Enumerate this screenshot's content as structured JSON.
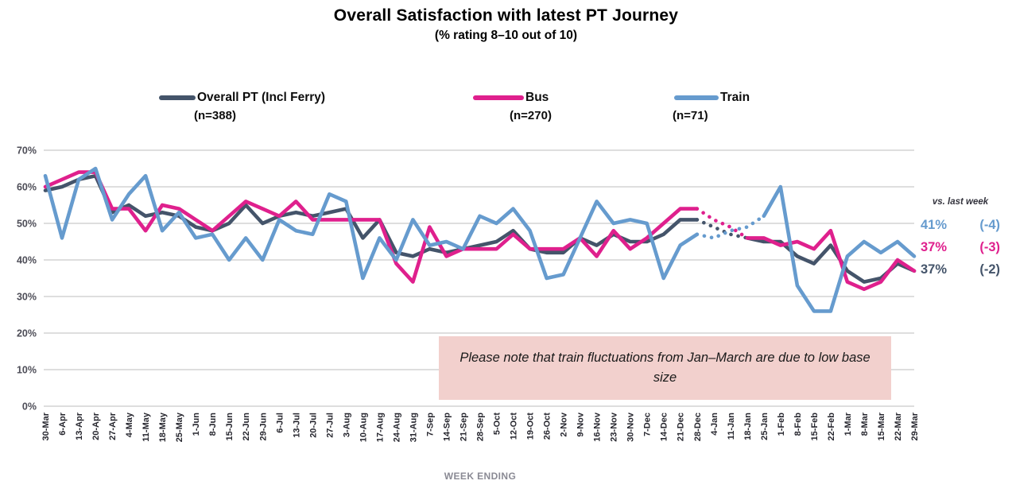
{
  "header": {
    "title": "Overall Satisfaction with latest PT Journey",
    "subtitle": "(% rating 8–10 out of 10)"
  },
  "legend": {
    "items": [
      {
        "label": "Overall PT (Incl Ferry)",
        "n": "(n=388)"
      },
      {
        "label": "Bus",
        "n": "(n=270)"
      },
      {
        "label": "Train",
        "n": "(n=71)"
      }
    ]
  },
  "axis": {
    "x_title": "WEEK ENDING",
    "y_ticks": [
      "70%",
      "60%",
      "50%",
      "40%",
      "30%",
      "20%",
      "10%",
      "0%"
    ]
  },
  "note": {
    "text": "Please note that train fluctuations from Jan–March are due to low base size",
    "background": "#F2D0CD"
  },
  "annotations": {
    "header": "vs. last week",
    "rows": [
      {
        "value": "41%",
        "delta": "(-4)",
        "series": "Train"
      },
      {
        "value": "37%",
        "delta": "(-3)",
        "series": "Bus"
      },
      {
        "value": "37%",
        "delta": "(-2)",
        "series": "Overall PT (Incl Ferry)"
      }
    ]
  },
  "chart_data": {
    "type": "line",
    "title": "Overall Satisfaction with latest PT Journey (% rating 8–10 out of 10)",
    "xlabel": "WEEK ENDING",
    "ylabel": "% rating 8–10 out of 10",
    "ylim": [
      0,
      70
    ],
    "y_tick_step": 10,
    "grid": true,
    "legend_position": "top",
    "grid_color": "#D9D9D9",
    "x": [
      "30-Mar",
      "6-Apr",
      "13-Apr",
      "20-Apr",
      "27-Apr",
      "4-May",
      "11-May",
      "18-May",
      "25-May",
      "1-Jun",
      "8-Jun",
      "15-Jun",
      "22-Jun",
      "29-Jun",
      "6-Jul",
      "13-Jul",
      "20-Jul",
      "27-Jul",
      "3-Aug",
      "10-Aug",
      "17-Aug",
      "24-Aug",
      "31-Aug",
      "7-Sep",
      "14-Sep",
      "21-Sep",
      "28-Sep",
      "5-Oct",
      "12-Oct",
      "19-Oct",
      "26-Oct",
      "2-Nov",
      "9-Nov",
      "16-Nov",
      "23-Nov",
      "30-Nov",
      "7-Dec",
      "14-Dec",
      "21-Dec",
      "28-Dec",
      "4-Jan",
      "11-Jan",
      "18-Jan",
      "25-Jan",
      "1-Feb",
      "8-Feb",
      "15-Feb",
      "22-Feb",
      "1-Mar",
      "8-Mar",
      "15-Mar",
      "22-Mar",
      "29-Mar"
    ],
    "series": [
      {
        "name": "Overall PT (Incl Ferry)",
        "n": 388,
        "color": "#44546A",
        "dotted_between": [
          39,
          42
        ],
        "values": [
          59,
          60,
          62,
          63,
          53,
          55,
          52,
          53,
          52,
          49,
          48,
          50,
          55,
          50,
          52,
          53,
          52,
          53,
          54,
          46,
          51,
          42,
          41,
          43,
          42,
          43,
          44,
          45,
          48,
          43,
          42,
          42,
          46,
          44,
          47,
          45,
          45,
          47,
          51,
          51,
          49,
          47,
          46,
          45,
          45,
          41,
          39,
          44,
          37,
          34,
          35,
          39,
          37
        ]
      },
      {
        "name": "Bus",
        "n": 270,
        "color": "#DF208D",
        "dotted_between": [
          39,
          42
        ],
        "values": [
          60,
          62,
          64,
          64,
          54,
          54,
          48,
          55,
          54,
          51,
          48,
          52,
          56,
          54,
          52,
          56,
          51,
          51,
          51,
          51,
          51,
          39,
          34,
          49,
          41,
          43,
          43,
          43,
          47,
          43,
          43,
          43,
          46,
          41,
          48,
          43,
          46,
          50,
          54,
          54,
          51,
          49,
          46,
          46,
          44,
          45,
          43,
          48,
          34,
          32,
          34,
          40,
          37
        ]
      },
      {
        "name": "Train",
        "n": 71,
        "color": "#669BCE",
        "dotted_between": [
          39,
          43
        ],
        "values": [
          63,
          46,
          62,
          65,
          51,
          58,
          63,
          48,
          53,
          46,
          47,
          40,
          46,
          40,
          51,
          48,
          47,
          58,
          56,
          35,
          46,
          40,
          51,
          44,
          45,
          43,
          52,
          50,
          54,
          48,
          35,
          36,
          46,
          56,
          50,
          51,
          50,
          35,
          44,
          47,
          46,
          48,
          49,
          52,
          60,
          33,
          26,
          26,
          41,
          45,
          42,
          45,
          41
        ]
      }
    ]
  }
}
